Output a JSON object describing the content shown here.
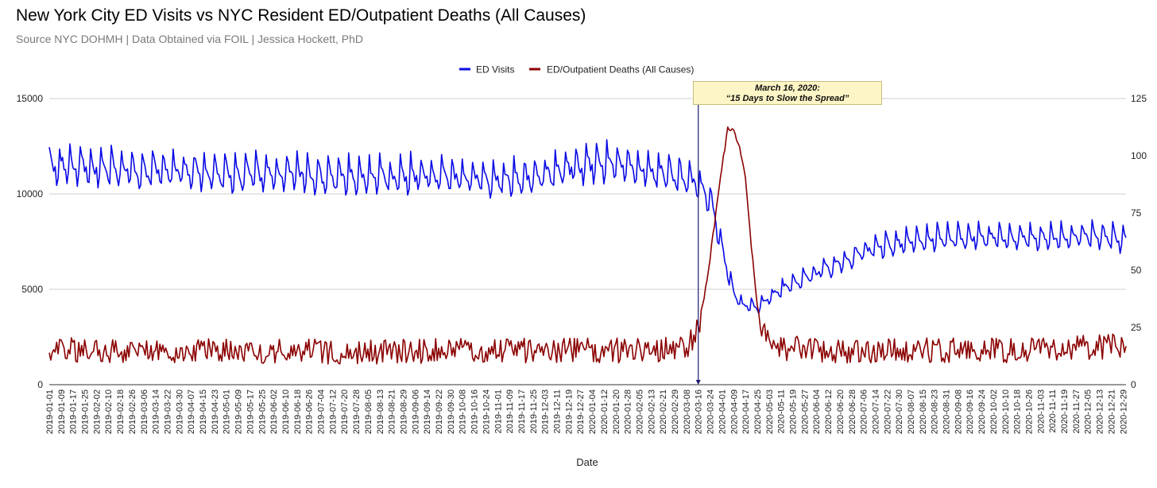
{
  "chart_data": {
    "type": "line",
    "title": "New York City ED Visits vs NYC Resident ED/Outpatient Deaths (All Causes)",
    "subtitle": "Source NYC DOHMH  | Data Obtained via FOIL | Jessica Hockett, PhD",
    "xlabel": "Date",
    "ylabel_left": "",
    "ylabel_right": "",
    "left_axis": {
      "ticks": [
        "0",
        "5000",
        "10000",
        "15000"
      ],
      "range": [
        0,
        15000
      ]
    },
    "right_axis": {
      "ticks": [
        "0",
        "25",
        "50",
        "75",
        "100",
        "125"
      ],
      "range": [
        0,
        125
      ]
    },
    "x_range": [
      "2019-01-01",
      "2020-12-31"
    ],
    "x_tick_labels": [
      "2019-01-01",
      "2019-01-09",
      "2019-01-17",
      "2019-01-25",
      "2019-02-02",
      "2019-02-10",
      "2019-02-18",
      "2019-02-26",
      "2019-03-06",
      "2019-03-14",
      "2019-03-22",
      "2019-03-30",
      "2019-04-07",
      "2019-04-15",
      "2019-04-23",
      "2019-05-01",
      "2019-05-09",
      "2019-05-17",
      "2019-05-25",
      "2019-06-02",
      "2019-06-10",
      "2019-06-18",
      "2019-06-26",
      "2019-07-04",
      "2019-07-12",
      "2019-07-20",
      "2019-07-28",
      "2019-08-05",
      "2019-08-13",
      "2019-08-21",
      "2019-08-29",
      "2019-09-06",
      "2019-09-14",
      "2019-09-22",
      "2019-09-30",
      "2019-10-08",
      "2019-10-16",
      "2019-10-24",
      "2019-11-01",
      "2019-11-09",
      "2019-11-17",
      "2019-11-25",
      "2019-12-03",
      "2019-12-11",
      "2019-12-19",
      "2019-12-27",
      "2020-01-04",
      "2020-01-12",
      "2020-01-20",
      "2020-01-28",
      "2020-02-05",
      "2020-02-13",
      "2020-02-21",
      "2020-02-29",
      "2020-03-08",
      "2020-03-16",
      "2020-03-24",
      "2020-04-01",
      "2020-04-09",
      "2020-04-17",
      "2020-04-25",
      "2020-05-03",
      "2020-05-11",
      "2020-05-19",
      "2020-05-27",
      "2020-06-04",
      "2020-06-12",
      "2020-06-20",
      "2020-06-28",
      "2020-07-06",
      "2020-07-14",
      "2020-07-22",
      "2020-07-30",
      "2020-08-07",
      "2020-08-15",
      "2020-08-23",
      "2020-08-31",
      "2020-09-08",
      "2020-09-16",
      "2020-09-24",
      "2020-10-02",
      "2020-10-10",
      "2020-10-18",
      "2020-10-26",
      "2020-11-03",
      "2020-11-11",
      "2020-11-19",
      "2020-11-27",
      "2020-12-05",
      "2020-12-13",
      "2020-12-21",
      "2020-12-29"
    ],
    "legend_position": "top-center",
    "grid": true,
    "series": [
      {
        "name": "ED Visits",
        "color": "#0a0ae6",
        "axis": "left",
        "x_days": [
          0,
          30,
          60,
          90,
          120,
          130,
          160,
          190,
          220,
          250,
          280,
          300,
          330,
          360,
          380,
          400,
          420,
          435,
          440,
          443,
          447,
          450,
          455,
          460,
          465,
          470,
          480,
          490,
          500,
          520,
          540,
          560,
          590,
          620,
          650,
          680,
          710,
          731
        ],
        "values": [
          11700,
          11500,
          11400,
          11300,
          11200,
          11100,
          11200,
          11000,
          11000,
          11100,
          11000,
          10900,
          11000,
          11600,
          11700,
          11400,
          11200,
          10900,
          10600,
          10300,
          9900,
          9400,
          7600,
          5900,
          4700,
          4200,
          4100,
          4700,
          5200,
          5900,
          6600,
          7300,
          7700,
          7800,
          7800,
          7800,
          7900,
          7600
        ]
      },
      {
        "name": "ED/Outpatient Deaths (All Causes)",
        "color": "#8b0000",
        "axis": "right",
        "x_days": [
          0,
          60,
          120,
          180,
          240,
          300,
          360,
          400,
          430,
          436,
          440,
          444,
          448,
          452,
          456,
          460,
          464,
          468,
          472,
          476,
          480,
          484,
          490,
          500,
          520,
          560,
          600,
          640,
          680,
          731
        ],
        "values": [
          15,
          15,
          15,
          14.5,
          14.5,
          15,
          15,
          15,
          16,
          19,
          25,
          38,
          55,
          75,
          95,
          112,
          110,
          105,
          90,
          60,
          35,
          22,
          18,
          16,
          15,
          14.5,
          15,
          15,
          15.5,
          17
        ]
      }
    ],
    "annotation": {
      "date": "2020-03-16",
      "line1": "March 16, 2020:",
      "line2": "“15 Days to Slow the Spread”"
    }
  }
}
